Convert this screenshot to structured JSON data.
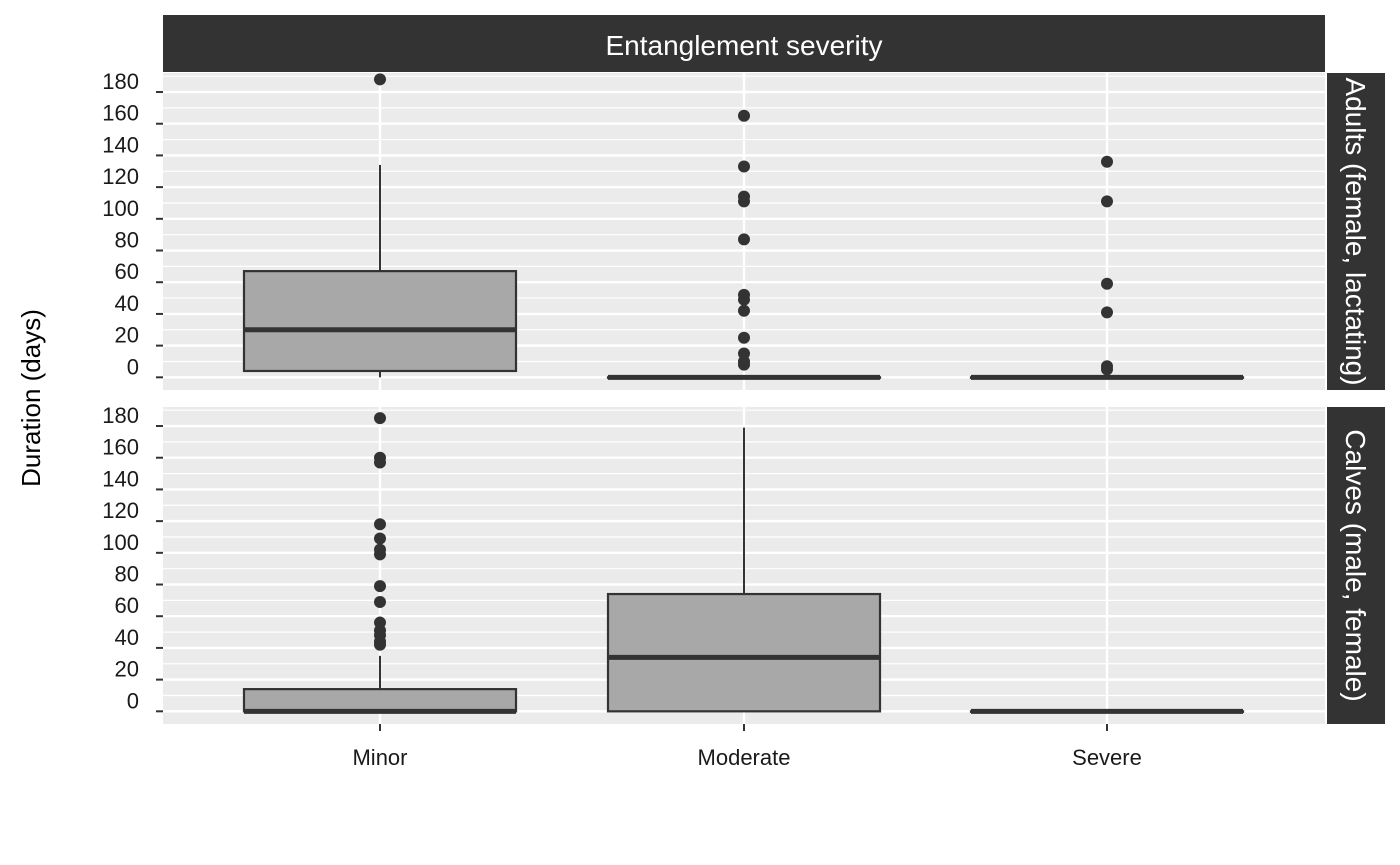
{
  "chart_data": {
    "type": "box",
    "title": "",
    "facet_column_label": "Entanglement severity",
    "xlabel": "",
    "ylabel": "Duration (days)",
    "categories": [
      "Minor",
      "Moderate",
      "Severe"
    ],
    "y_ticks": [
      0,
      20,
      40,
      60,
      80,
      100,
      120,
      140,
      160,
      180
    ],
    "ylim": [
      -8,
      192
    ],
    "fill_color": "#a8a8a8",
    "stroke_color": "#333333",
    "panel_bg": "#ebebeb",
    "strip_bg": "#333333",
    "panels": [
      {
        "row_label": "Adults (female, lactating)",
        "boxes": [
          {
            "category": "Minor",
            "q1": 4,
            "median": 30,
            "q3": 67,
            "whisker_low": 0,
            "whisker_high": 134,
            "outliers": [
              188
            ]
          },
          {
            "category": "Moderate",
            "q1": 0,
            "median": 0,
            "q3": 0,
            "whisker_low": 0,
            "whisker_high": 0,
            "outliers": [
              165,
              133,
              114,
              111,
              87,
              52,
              49,
              42,
              25,
              15,
              10,
              8
            ]
          },
          {
            "category": "Severe",
            "q1": 0,
            "median": 0,
            "q3": 0,
            "whisker_low": 0,
            "whisker_high": 0,
            "outliers": [
              136,
              111,
              59,
              41,
              7,
              5
            ]
          }
        ]
      },
      {
        "row_label": "Calves (male, female)",
        "boxes": [
          {
            "category": "Minor",
            "q1": 0,
            "median": 0,
            "q3": 14,
            "whisker_low": 0,
            "whisker_high": 35,
            "outliers": [
              185,
              160,
              157,
              118,
              109,
              102,
              99,
              79,
              69,
              56,
              51,
              48,
              44,
              42
            ]
          },
          {
            "category": "Moderate",
            "q1": 0,
            "median": 34,
            "q3": 74,
            "whisker_low": 0,
            "whisker_high": 179,
            "outliers": []
          },
          {
            "category": "Severe",
            "q1": 0,
            "median": 0,
            "q3": 0,
            "whisker_low": 0,
            "whisker_high": 0,
            "outliers": []
          }
        ]
      }
    ]
  }
}
